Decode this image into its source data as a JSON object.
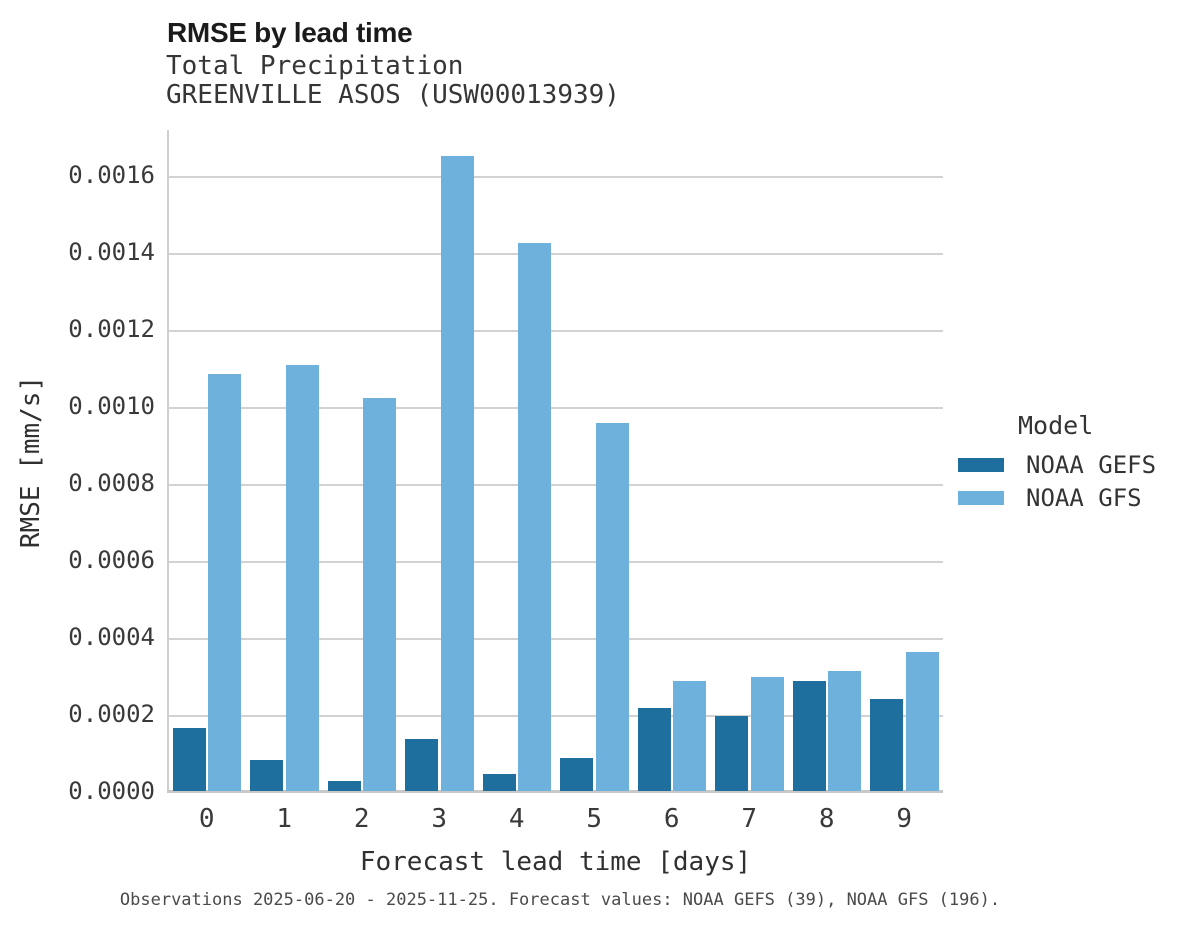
{
  "header": {
    "title": "RMSE by lead time",
    "subtitle1": "Total Precipitation",
    "subtitle2": "GREENVILLE ASOS (USW00013939)"
  },
  "chart_data": {
    "type": "bar",
    "title": "RMSE by lead time",
    "subtitle": [
      "Total Precipitation",
      "GREENVILLE ASOS (USW00013939)"
    ],
    "xlabel": "Forecast lead time [days]",
    "ylabel": "RMSE [mm/s]",
    "categories": [
      "0",
      "1",
      "2",
      "3",
      "4",
      "5",
      "6",
      "7",
      "8",
      "9"
    ],
    "series": [
      {
        "name": "NOAA GEFS",
        "color": "#1f6f9e",
        "values": [
          0.000165,
          8e-05,
          2.5e-05,
          0.000135,
          4.5e-05,
          8.5e-05,
          0.000215,
          0.000195,
          0.000285,
          0.000238
        ]
      },
      {
        "name": "NOAA GFS",
        "color": "#6db1dc",
        "values": [
          0.001083,
          0.001107,
          0.001022,
          0.00165,
          0.001425,
          0.000955,
          0.000285,
          0.000296,
          0.000312,
          0.00036
        ]
      }
    ],
    "ylim": [
      0,
      0.00172
    ],
    "y_ticks": [
      "0.0000",
      "0.0002",
      "0.0004",
      "0.0006",
      "0.0008",
      "0.0010",
      "0.0012",
      "0.0014",
      "0.0016"
    ],
    "grid": true,
    "legend_position": "right"
  },
  "legend": {
    "title": "Model",
    "entries": [
      {
        "label": "NOAA GEFS",
        "color": "#1f6f9e"
      },
      {
        "label": "NOAA GFS",
        "color": "#6db1dc"
      }
    ]
  },
  "caption": "Observations 2025-06-20 - 2025-11-25. Forecast values: NOAA GEFS (39), NOAA GFS (196)."
}
